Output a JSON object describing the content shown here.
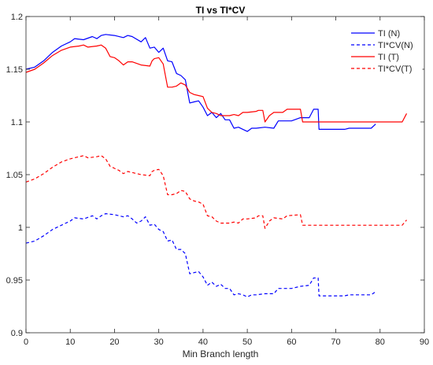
{
  "chart_data": {
    "type": "line",
    "title": "TI vs TI*CV",
    "xlabel": "Min Branch length",
    "ylabel": "",
    "xlim": [
      0,
      90
    ],
    "ylim": [
      0.9,
      1.2
    ],
    "xticks": [
      0,
      10,
      20,
      30,
      40,
      50,
      60,
      70,
      80,
      90
    ],
    "yticks": [
      0.9,
      0.95,
      1,
      1.05,
      1.1,
      1.15,
      1.2
    ],
    "xtick_labels": [
      "0",
      "10",
      "20",
      "30",
      "40",
      "50",
      "60",
      "70",
      "80",
      "90"
    ],
    "ytick_labels": [
      "0.9",
      "0.95",
      "1",
      "1.05",
      "1.1",
      "1.15",
      "1.2"
    ],
    "grid": false,
    "legend_position": "top-right",
    "series": [
      {
        "name": "TI (N)",
        "color": "#0000ff",
        "dash": "solid",
        "points": [
          [
            0,
            1.15
          ],
          [
            2,
            1.152
          ],
          [
            4,
            1.158
          ],
          [
            6,
            1.166
          ],
          [
            8,
            1.172
          ],
          [
            10,
            1.176
          ],
          [
            11,
            1.179
          ],
          [
            13,
            1.178
          ],
          [
            15,
            1.181
          ],
          [
            16,
            1.179
          ],
          [
            17,
            1.182
          ],
          [
            18,
            1.183
          ],
          [
            20,
            1.182
          ],
          [
            22,
            1.18
          ],
          [
            23,
            1.182
          ],
          [
            24,
            1.181
          ],
          [
            26,
            1.176
          ],
          [
            27,
            1.18
          ],
          [
            28,
            1.17
          ],
          [
            29,
            1.171
          ],
          [
            30,
            1.166
          ],
          [
            31,
            1.17
          ],
          [
            32,
            1.158
          ],
          [
            33,
            1.157
          ],
          [
            34,
            1.146
          ],
          [
            35,
            1.144
          ],
          [
            36,
            1.14
          ],
          [
            37,
            1.118
          ],
          [
            38,
            1.119
          ],
          [
            39,
            1.12
          ],
          [
            40,
            1.114
          ],
          [
            41,
            1.106
          ],
          [
            42,
            1.109
          ],
          [
            43,
            1.104
          ],
          [
            44,
            1.108
          ],
          [
            45,
            1.102
          ],
          [
            46,
            1.102
          ],
          [
            47,
            1.094
          ],
          [
            48,
            1.095
          ],
          [
            49,
            1.093
          ],
          [
            50,
            1.091
          ],
          [
            51,
            1.094
          ],
          [
            52,
            1.094
          ],
          [
            54,
            1.095
          ],
          [
            56,
            1.094
          ],
          [
            57,
            1.101
          ],
          [
            58,
            1.101
          ],
          [
            60,
            1.101
          ],
          [
            62,
            1.104
          ],
          [
            64,
            1.104
          ],
          [
            65,
            1.112
          ],
          [
            66,
            1.112
          ],
          [
            66.2,
            1.093
          ],
          [
            68,
            1.093
          ],
          [
            72,
            1.093
          ],
          [
            73,
            1.094
          ],
          [
            78,
            1.094
          ],
          [
            79,
            1.098
          ]
        ]
      },
      {
        "name": "TI*CV(N)",
        "color": "#0000ff",
        "dash": "dashed",
        "points": [
          [
            0,
            0.985
          ],
          [
            2,
            0.987
          ],
          [
            4,
            0.992
          ],
          [
            6,
            0.998
          ],
          [
            8,
            1.002
          ],
          [
            10,
            1.006
          ],
          [
            11,
            1.009
          ],
          [
            13,
            1.008
          ],
          [
            15,
            1.011
          ],
          [
            16,
            1.008
          ],
          [
            17,
            1.011
          ],
          [
            18,
            1.013
          ],
          [
            20,
            1.012
          ],
          [
            22,
            1.01
          ],
          [
            23,
            1.011
          ],
          [
            24,
            1.008
          ],
          [
            25,
            1.004
          ],
          [
            26,
            1.006
          ],
          [
            27,
            1.01
          ],
          [
            28,
            1.002
          ],
          [
            29,
            1.003
          ],
          [
            30,
            0.998
          ],
          [
            31,
            0.996
          ],
          [
            32,
            0.987
          ],
          [
            33,
            0.988
          ],
          [
            34,
            0.979
          ],
          [
            35,
            0.979
          ],
          [
            36,
            0.975
          ],
          [
            37,
            0.956
          ],
          [
            38,
            0.957
          ],
          [
            39,
            0.958
          ],
          [
            40,
            0.953
          ],
          [
            41,
            0.945
          ],
          [
            42,
            0.948
          ],
          [
            43,
            0.944
          ],
          [
            44,
            0.946
          ],
          [
            45,
            0.942
          ],
          [
            46,
            0.942
          ],
          [
            47,
            0.936
          ],
          [
            48,
            0.937
          ],
          [
            49,
            0.936
          ],
          [
            50,
            0.934
          ],
          [
            51,
            0.936
          ],
          [
            52,
            0.936
          ],
          [
            54,
            0.937
          ],
          [
            56,
            0.937
          ],
          [
            57,
            0.942
          ],
          [
            58,
            0.942
          ],
          [
            60,
            0.942
          ],
          [
            62,
            0.944
          ],
          [
            64,
            0.945
          ],
          [
            65,
            0.952
          ],
          [
            66,
            0.952
          ],
          [
            66.2,
            0.935
          ],
          [
            68,
            0.935
          ],
          [
            72,
            0.935
          ],
          [
            73,
            0.936
          ],
          [
            78,
            0.936
          ],
          [
            79,
            0.939
          ]
        ]
      },
      {
        "name": "TI (T)",
        "color": "#ff0000",
        "dash": "solid",
        "points": [
          [
            0,
            1.147
          ],
          [
            2,
            1.15
          ],
          [
            4,
            1.156
          ],
          [
            6,
            1.163
          ],
          [
            8,
            1.168
          ],
          [
            10,
            1.171
          ],
          [
            12,
            1.172
          ],
          [
            13,
            1.173
          ],
          [
            14,
            1.171
          ],
          [
            16,
            1.172
          ],
          [
            17,
            1.173
          ],
          [
            18,
            1.17
          ],
          [
            19,
            1.162
          ],
          [
            20,
            1.161
          ],
          [
            21,
            1.158
          ],
          [
            22,
            1.154
          ],
          [
            23,
            1.157
          ],
          [
            24,
            1.157
          ],
          [
            26,
            1.154
          ],
          [
            28,
            1.153
          ],
          [
            28.5,
            1.158
          ],
          [
            29,
            1.16
          ],
          [
            30,
            1.161
          ],
          [
            31,
            1.155
          ],
          [
            32,
            1.133
          ],
          [
            33,
            1.133
          ],
          [
            34,
            1.134
          ],
          [
            35,
            1.137
          ],
          [
            36,
            1.135
          ],
          [
            37,
            1.128
          ],
          [
            38,
            1.126
          ],
          [
            39,
            1.125
          ],
          [
            40,
            1.124
          ],
          [
            41,
            1.113
          ],
          [
            42,
            1.109
          ],
          [
            43,
            1.108
          ],
          [
            44,
            1.106
          ],
          [
            46,
            1.106
          ],
          [
            47,
            1.107
          ],
          [
            48,
            1.106
          ],
          [
            49,
            1.109
          ],
          [
            50,
            1.109
          ],
          [
            52,
            1.11
          ],
          [
            52.5,
            1.111
          ],
          [
            53.5,
            1.111
          ],
          [
            54,
            1.1
          ],
          [
            55,
            1.106
          ],
          [
            56,
            1.109
          ],
          [
            58,
            1.109
          ],
          [
            59,
            1.112
          ],
          [
            62,
            1.112
          ],
          [
            62.5,
            1.1
          ],
          [
            64,
            1.1
          ],
          [
            70,
            1.1
          ],
          [
            80,
            1.1
          ],
          [
            85,
            1.1
          ],
          [
            86,
            1.108
          ]
        ]
      },
      {
        "name": "TI*CV(T)",
        "color": "#ff0000",
        "dash": "dashed",
        "points": [
          [
            0,
            1.043
          ],
          [
            2,
            1.046
          ],
          [
            4,
            1.051
          ],
          [
            6,
            1.057
          ],
          [
            8,
            1.062
          ],
          [
            10,
            1.065
          ],
          [
            12,
            1.067
          ],
          [
            13,
            1.068
          ],
          [
            14,
            1.066
          ],
          [
            16,
            1.067
          ],
          [
            17,
            1.068
          ],
          [
            18,
            1.065
          ],
          [
            19,
            1.058
          ],
          [
            20,
            1.056
          ],
          [
            21,
            1.054
          ],
          [
            22,
            1.051
          ],
          [
            23,
            1.053
          ],
          [
            24,
            1.052
          ],
          [
            26,
            1.05
          ],
          [
            28,
            1.049
          ],
          [
            28.5,
            1.053
          ],
          [
            29,
            1.054
          ],
          [
            30,
            1.055
          ],
          [
            31,
            1.049
          ],
          [
            32,
            1.031
          ],
          [
            33,
            1.031
          ],
          [
            34,
            1.032
          ],
          [
            35,
            1.035
          ],
          [
            36,
            1.034
          ],
          [
            37,
            1.027
          ],
          [
            38,
            1.025
          ],
          [
            39,
            1.024
          ],
          [
            40,
            1.022
          ],
          [
            41,
            1.011
          ],
          [
            42,
            1.01
          ],
          [
            43,
            1.006
          ],
          [
            44,
            1.004
          ],
          [
            46,
            1.004
          ],
          [
            47,
            1.005
          ],
          [
            48,
            1.004
          ],
          [
            49,
            1.008
          ],
          [
            50,
            1.008
          ],
          [
            52,
            1.009
          ],
          [
            52.5,
            1.011
          ],
          [
            53.5,
            1.011
          ],
          [
            54,
            0.999
          ],
          [
            55,
            1.006
          ],
          [
            56,
            1.009
          ],
          [
            58,
            1.008
          ],
          [
            59,
            1.011
          ],
          [
            62,
            1.012
          ],
          [
            62.5,
            1.002
          ],
          [
            64,
            1.002
          ],
          [
            70,
            1.002
          ],
          [
            80,
            1.002
          ],
          [
            85,
            1.002
          ],
          [
            86,
            1.007
          ]
        ]
      }
    ]
  }
}
